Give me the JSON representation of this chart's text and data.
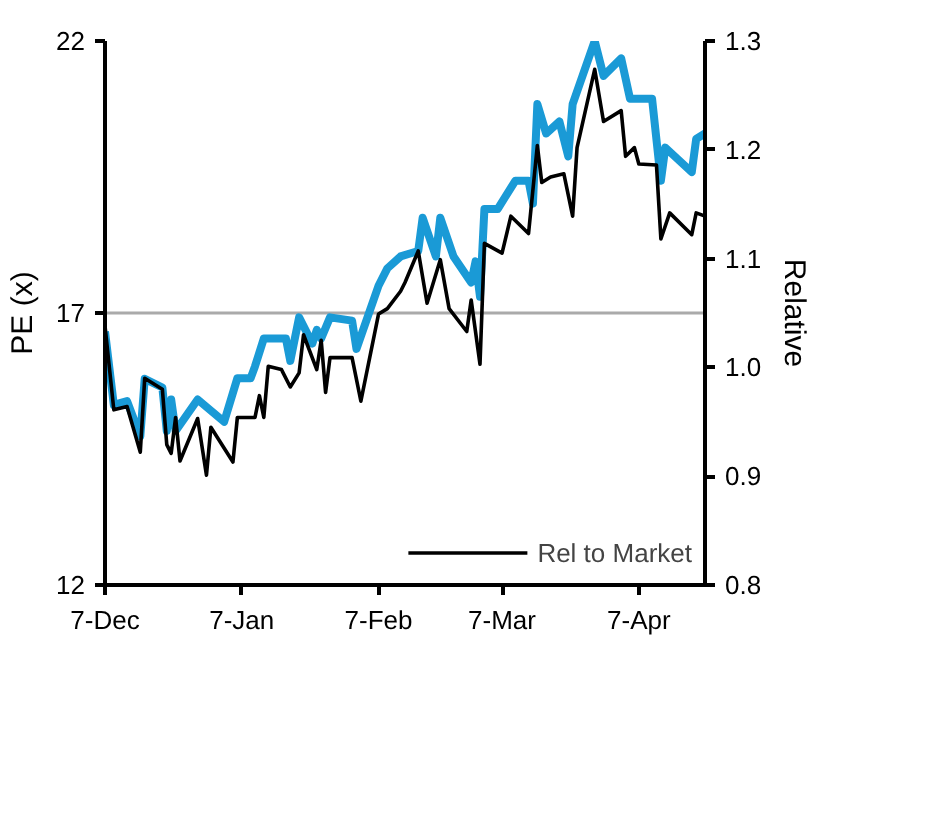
{
  "chart_data": {
    "type": "line",
    "ylabel": "PE (x)",
    "y2label": "Relative",
    "categories": [
      "7-Dec",
      null,
      null,
      null,
      null,
      null,
      null,
      null,
      null,
      null,
      null,
      null,
      null,
      null,
      null,
      null,
      null,
      null,
      null,
      null,
      null,
      null,
      null,
      null,
      null,
      null,
      null,
      null,
      null,
      null,
      null,
      "7-Jan",
      null,
      null,
      null,
      null,
      null,
      null,
      null,
      null,
      null,
      null,
      null,
      null,
      null,
      null,
      null,
      null,
      null,
      null,
      null,
      null,
      null,
      null,
      null,
      null,
      null,
      null,
      null,
      null,
      null,
      null,
      "7-Feb",
      null,
      null,
      null,
      null,
      null,
      null,
      null,
      null,
      null,
      null,
      null,
      null,
      null,
      null,
      null,
      null,
      null,
      null,
      null,
      null,
      null,
      null,
      null,
      null,
      null,
      null,
      null,
      "7-Mar",
      null,
      null,
      null,
      null,
      null,
      null,
      null,
      null,
      null,
      null,
      null,
      null,
      null,
      null,
      null,
      null,
      null,
      null,
      null,
      null,
      null,
      null,
      null,
      null,
      null,
      null,
      null,
      null,
      null,
      null,
      "7-Apr",
      null,
      null,
      null,
      null,
      null,
      null,
      null,
      null,
      null,
      null,
      null,
      null,
      null,
      null,
      null
    ],
    "ylim": [
      12,
      22
    ],
    "yticks": [
      12,
      17,
      22
    ],
    "y2lim": [
      0.8,
      1.3
    ],
    "y2ticks": [
      0.8,
      0.9,
      {
        "value": 1.0,
        "label": "1.0"
      },
      1.1,
      1.2,
      1.3
    ],
    "grid": "y",
    "legend": "bottom",
    "line_style": "solid",
    "marker": "none",
    "series": [
      {
        "color": "#1a9ad6",
        "values": [
          16.66,
          null,
          15.31,
          null,
          null,
          15.38,
          null,
          null,
          14.73,
          15.79,
          null,
          null,
          null,
          15.63,
          14.83,
          15.41,
          14.83,
          null,
          null,
          null,
          null,
          15.41,
          null,
          null,
          null,
          null,
          null,
          15.0,
          null,
          null,
          15.8,
          null,
          null,
          15.8,
          16.02,
          null,
          16.53,
          null,
          null,
          null,
          null,
          16.53,
          16.12,
          null,
          16.92,
          null,
          null,
          16.44,
          16.69,
          16.53,
          null,
          16.92,
          null,
          null,
          null,
          null,
          16.86,
          16.34,
          null,
          null,
          null,
          null,
          17.5,
          null,
          17.82,
          null,
          null,
          18.04,
          null,
          null,
          null,
          18.14,
          18.75,
          null,
          null,
          18.04,
          18.75,
          null,
          null,
          18.04,
          null,
          null,
          null,
          17.56,
          17.95,
          17.3,
          18.91,
          null,
          null,
          18.91,
          null,
          null,
          null,
          19.43,
          null,
          null,
          19.43,
          19.01,
          20.84,
          null,
          20.3,
          null,
          null,
          20.52,
          null,
          19.88,
          20.84,
          null,
          null,
          null,
          null,
          22.0,
          null,
          21.36,
          null,
          null,
          null,
          21.68,
          null,
          20.94,
          null,
          20.94,
          null,
          null,
          20.94,
          null,
          19.43,
          20.04,
          null,
          null,
          null,
          null,
          null,
          19.59,
          20.2,
          null,
          20.3
        ]
      },
      {
        "name": "Rel to Market",
        "color": "#000000",
        "axis": "y2",
        "values": [
          1.038,
          null,
          0.961,
          null,
          null,
          0.964,
          null,
          null,
          0.922,
          0.99,
          null,
          null,
          null,
          0.98,
          0.929,
          0.921,
          0.954,
          0.914,
          null,
          null,
          null,
          0.953,
          null,
          0.901,
          0.945,
          null,
          null,
          null,
          null,
          0.913,
          0.954,
          null,
          null,
          null,
          0.954,
          0.974,
          0.954,
          1.001,
          null,
          null,
          0.998,
          null,
          0.982,
          null,
          0.995,
          1.03,
          null,
          null,
          0.998,
          1.025,
          0.977,
          1.009,
          null,
          null,
          null,
          null,
          1.009,
          null,
          0.969,
          null,
          null,
          null,
          1.049,
          null,
          1.054,
          null,
          null,
          1.07,
          1.078,
          null,
          null,
          1.107,
          null,
          1.059,
          null,
          null,
          1.099,
          null,
          1.054,
          null,
          null,
          null,
          1.033,
          1.062,
          null,
          1.003,
          1.114,
          null,
          null,
          null,
          1.105,
          null,
          1.139,
          null,
          null,
          null,
          1.123,
          null,
          1.204,
          1.17,
          null,
          1.175,
          null,
          null,
          1.178,
          null,
          1.139,
          1.202,
          null,
          null,
          null,
          1.274,
          null,
          1.226,
          null,
          null,
          null,
          1.236,
          1.194,
          null,
          1.202,
          1.187,
          null,
          null,
          null,
          1.186,
          1.118,
          null,
          1.142,
          null,
          null,
          null,
          null,
          1.122,
          1.142,
          null,
          1.139
        ]
      }
    ]
  }
}
